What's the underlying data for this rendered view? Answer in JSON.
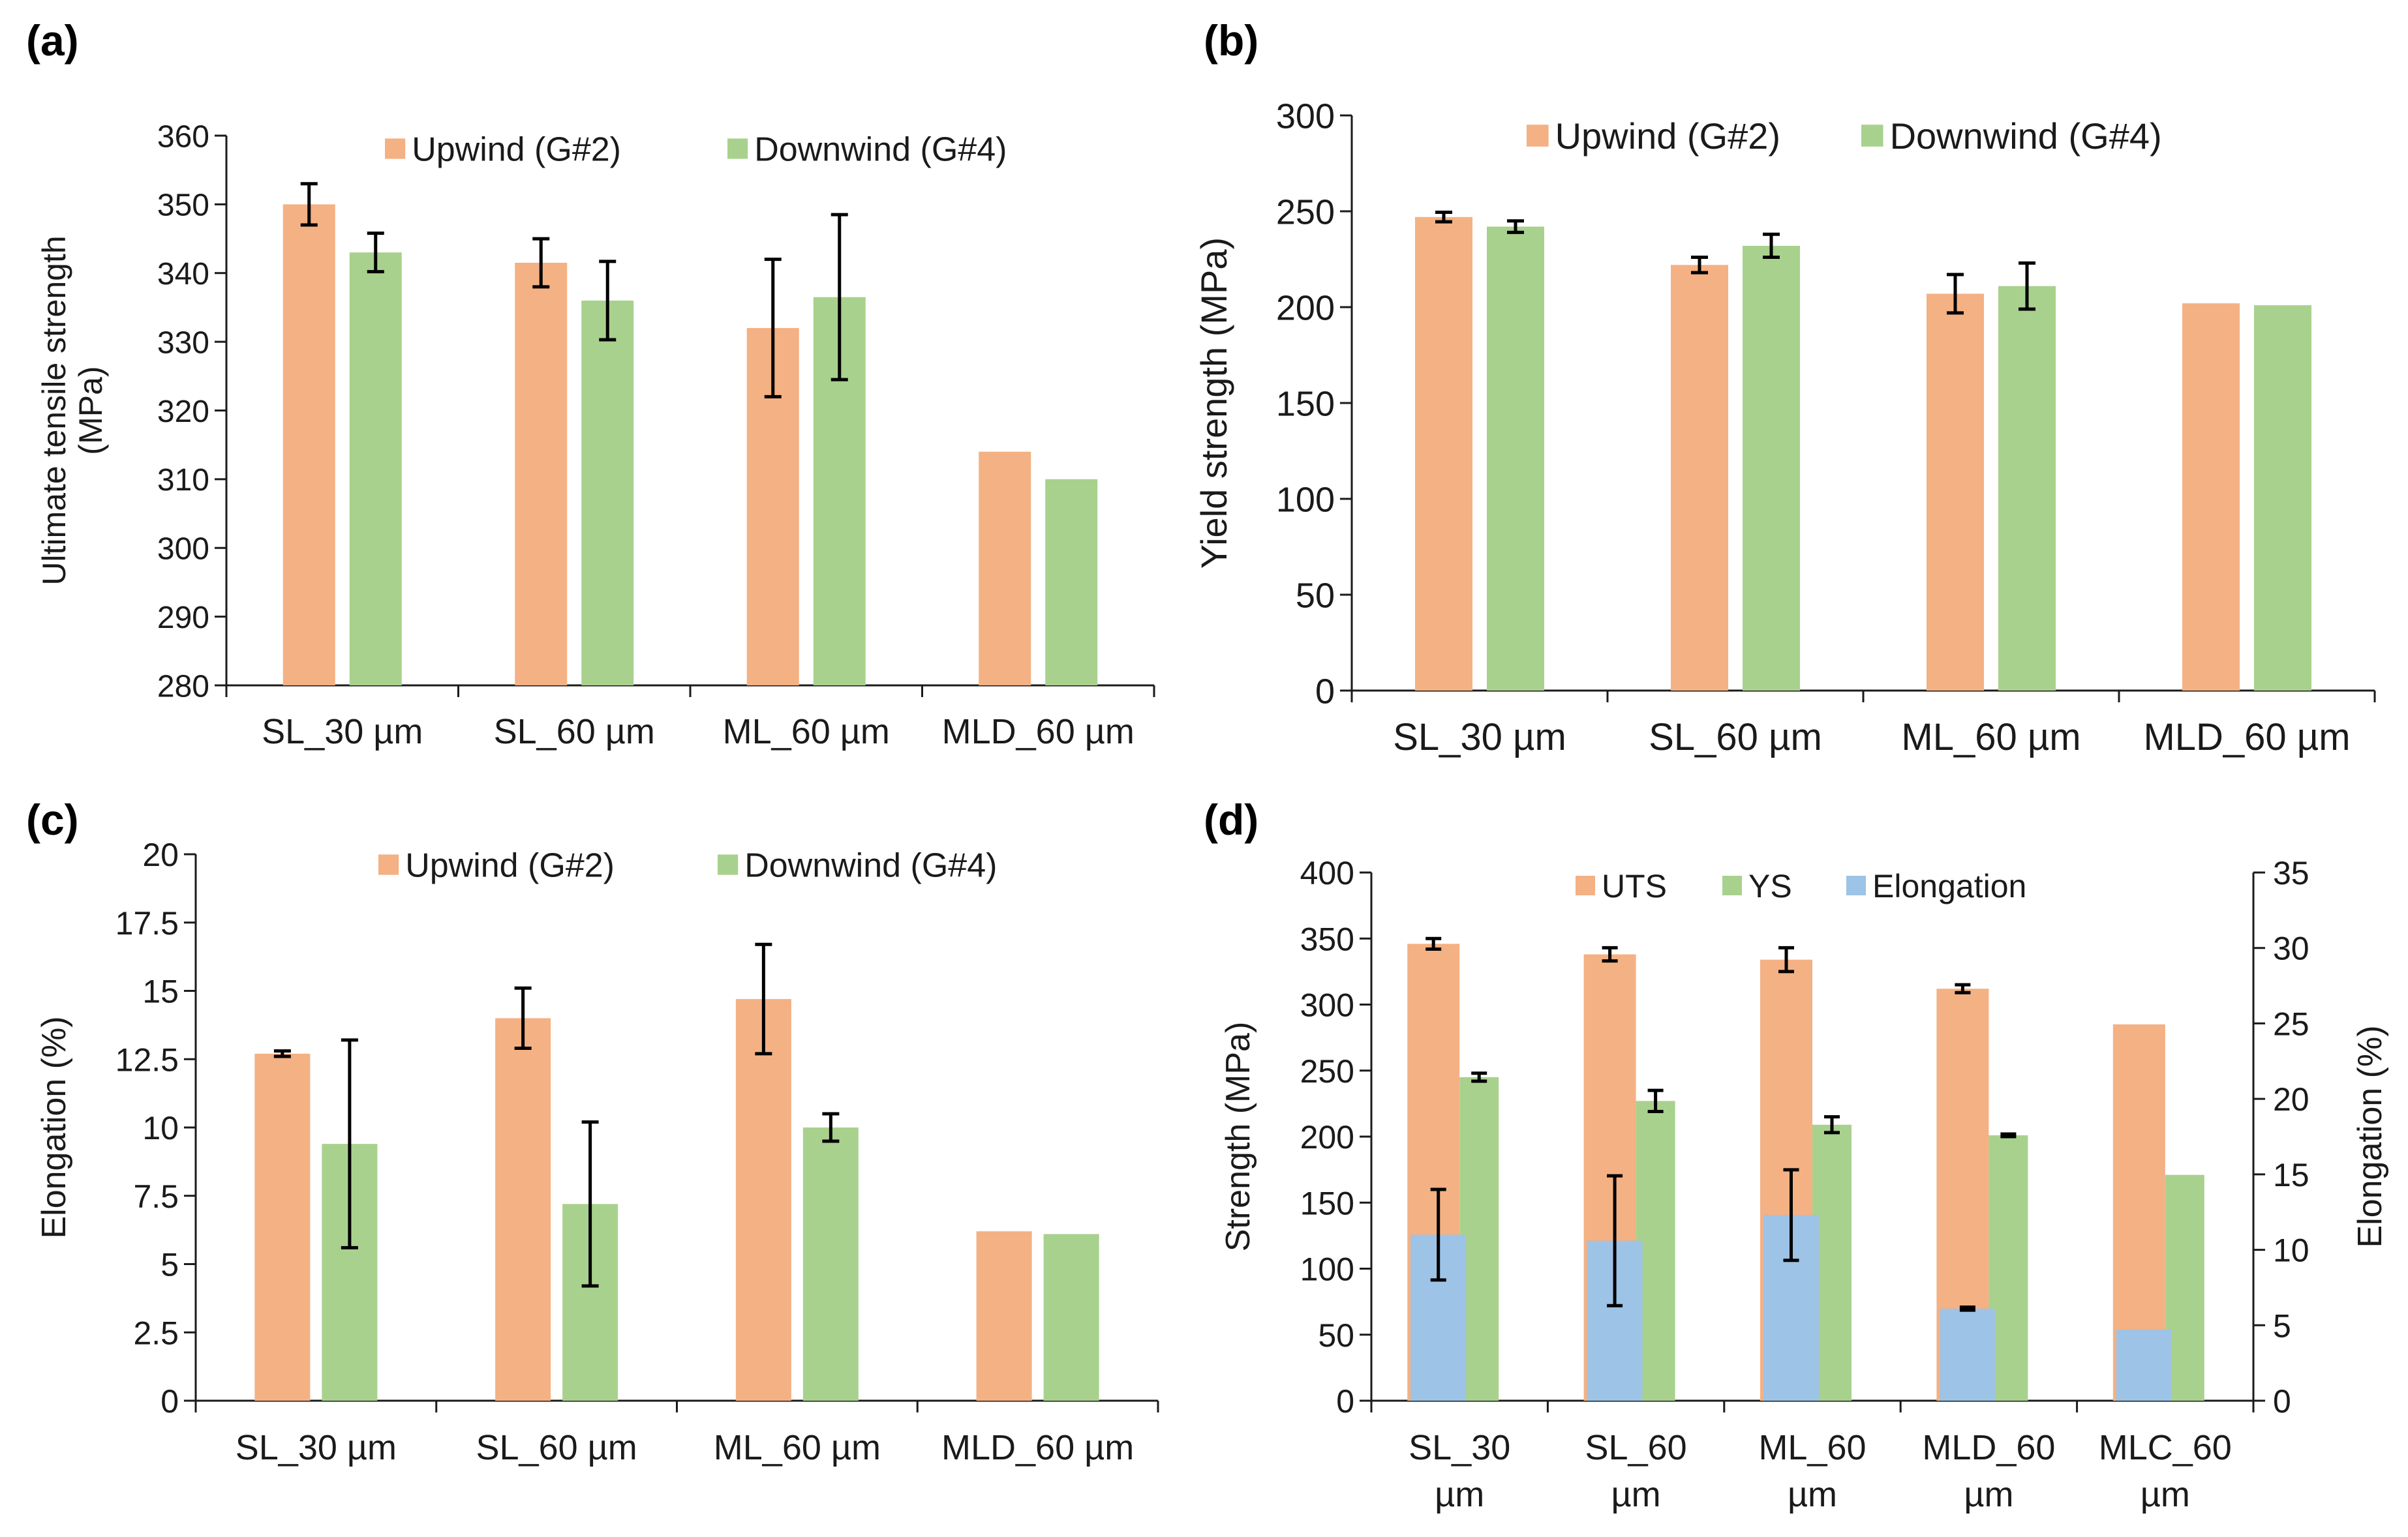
{
  "colors": {
    "upwind": "#f4b183",
    "downwind": "#a9d18e",
    "elongation": "#9dc3e6",
    "axis": "#1a1a1a",
    "error_bar": "#000000"
  },
  "chart_data": [
    {
      "panel_label": "(a)",
      "type": "bar",
      "title": "",
      "xlabel": "",
      "ylabel": "Ultimate tensile strength (MPa)",
      "ylabel_lines": [
        "Ultimate tensile strength",
        "(MPa)"
      ],
      "ylim": [
        280,
        360
      ],
      "yticks": [
        280,
        290,
        300,
        310,
        320,
        330,
        340,
        350,
        360
      ],
      "ytick_labels": [
        "280",
        "290",
        "300",
        "310",
        "320",
        "330",
        "340",
        "350",
        "360"
      ],
      "categories": [
        "SL_30 µm",
        "SL_60 µm",
        "ML_60 µm",
        "MLD_60 µm"
      ],
      "legend_position": "top-center",
      "series": [
        {
          "name": "Upwind (G#2)",
          "color_key": "upwind",
          "values": [
            350,
            341.5,
            332,
            314
          ],
          "errors": [
            3,
            3.5,
            10,
            null
          ]
        },
        {
          "name": "Downwind (G#4)",
          "color_key": "downwind",
          "values": [
            343,
            336,
            336.5,
            310
          ],
          "errors": [
            2.8,
            5.7,
            12,
            null
          ]
        }
      ]
    },
    {
      "panel_label": "(b)",
      "type": "bar",
      "title": "",
      "xlabel": "",
      "ylabel": "Yield strength (MPa)",
      "ylabel_lines": [
        "Yield strength (MPa)"
      ],
      "ylim": [
        0,
        300
      ],
      "yticks": [
        0,
        50,
        100,
        150,
        200,
        250,
        300
      ],
      "ytick_labels": [
        "0",
        "50",
        "100",
        "150",
        "200",
        "250",
        "300"
      ],
      "categories": [
        "SL_30 µm",
        "SL_60 µm",
        "ML_60 µm",
        "MLD_60 µm"
      ],
      "legend_position": "top-center",
      "series": [
        {
          "name": "Upwind (G#2)",
          "color_key": "upwind",
          "values": [
            247,
            222,
            207,
            202
          ],
          "errors": [
            2.5,
            4,
            10,
            null
          ]
        },
        {
          "name": "Downwind (G#4)",
          "color_key": "downwind",
          "values": [
            242,
            232,
            211,
            201
          ],
          "errors": [
            3,
            6,
            12,
            null
          ]
        }
      ]
    },
    {
      "panel_label": "(c)",
      "type": "bar",
      "title": "",
      "xlabel": "",
      "ylabel": "Elongation (%)",
      "ylabel_lines": [
        "Elongation (%)"
      ],
      "ylim": [
        0,
        20
      ],
      "yticks": [
        0,
        2.5,
        5,
        7.5,
        10,
        12.5,
        15,
        17.5,
        20
      ],
      "ytick_labels": [
        "0",
        "2.5",
        "5",
        "7.5",
        "10",
        "12.5",
        "15",
        "17.5",
        "20"
      ],
      "categories": [
        "SL_30 µm",
        "SL_60 µm",
        "ML_60 µm",
        "MLD_60 µm"
      ],
      "legend_position": "top-center",
      "series": [
        {
          "name": "Upwind (G#2)",
          "color_key": "upwind",
          "values": [
            12.7,
            14,
            14.7,
            6.2
          ],
          "errors": [
            0.1,
            1.1,
            2,
            null
          ]
        },
        {
          "name": "Downwind (G#4)",
          "color_key": "downwind",
          "values": [
            9.4,
            7.2,
            10,
            6.1
          ],
          "errors": [
            3.8,
            3,
            0.5,
            null
          ]
        }
      ]
    },
    {
      "panel_label": "(d)",
      "type": "bar",
      "title": "",
      "xlabel": "",
      "ylabel": "Strength (MPa)",
      "ylabel_lines": [
        "Strength (MPa)"
      ],
      "ylim": [
        0,
        400
      ],
      "yticks": [
        0,
        50,
        100,
        150,
        200,
        250,
        300,
        350,
        400
      ],
      "ytick_labels": [
        "0",
        "50",
        "100",
        "150",
        "200",
        "250",
        "300",
        "350",
        "400"
      ],
      "y2label": "Elongation (%)",
      "y2label_lines": [
        "Elongation (%)"
      ],
      "y2lim": [
        0,
        35
      ],
      "y2ticks": [
        0,
        5,
        10,
        15,
        20,
        25,
        30,
        35
      ],
      "y2tick_labels": [
        "0",
        "5",
        "10",
        "15",
        "20",
        "25",
        "30",
        "35"
      ],
      "categories": [
        "SL_30 µm",
        "SL_60 µm",
        "ML_60 µm",
        "MLD_60 µm",
        "MLC_60 µm"
      ],
      "category_lines": [
        [
          "SL_30",
          "µm"
        ],
        [
          "SL_60",
          "µm"
        ],
        [
          "ML_60",
          "µm"
        ],
        [
          "MLD_60",
          "µm"
        ],
        [
          "MLC_60",
          "µm"
        ]
      ],
      "legend_position": "top-center",
      "series": [
        {
          "name": "UTS",
          "color_key": "upwind",
          "axis": "left",
          "values": [
            346,
            338,
            334,
            312,
            285
          ],
          "errors": [
            4,
            5,
            9,
            3,
            null
          ]
        },
        {
          "name": "YS",
          "color_key": "downwind",
          "axis": "left",
          "values": [
            245,
            227,
            209,
            201,
            171
          ],
          "errors": [
            3,
            8,
            6,
            1,
            null
          ]
        },
        {
          "name": "Elongation",
          "color_key": "elongation",
          "axis": "right",
          "values": [
            11,
            10.6,
            12.3,
            6.1,
            4.7
          ],
          "errors": [
            3,
            4.3,
            3,
            0.1,
            null
          ]
        }
      ]
    }
  ]
}
